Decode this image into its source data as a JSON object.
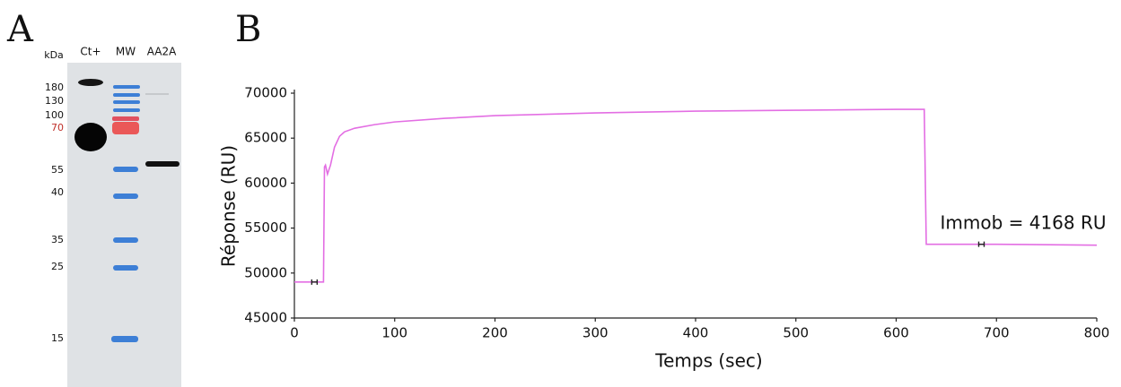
{
  "panel_a": {
    "label": "A",
    "unit": "kDa",
    "lanes": [
      "Ct+",
      "MW",
      "AA2A"
    ],
    "ladder": [
      "180",
      "130",
      "100",
      "70",
      "55",
      "40",
      "35",
      "25",
      "15"
    ]
  },
  "chart_data": {
    "type": "line",
    "panel": "B",
    "x_label": "Temps (sec)",
    "y_label": "Réponse (RU)",
    "annotation": "Immob = 4168 RU",
    "color": "#e36ee3",
    "x": [
      0,
      29,
      30,
      31,
      33,
      36,
      40,
      45,
      50,
      60,
      80,
      100,
      150,
      200,
      300,
      400,
      500,
      600,
      628,
      630,
      700,
      800
    ],
    "values": [
      49000,
      49000,
      61800,
      62000,
      61000,
      62000,
      64000,
      65200,
      65700,
      66100,
      66500,
      66800,
      67200,
      67500,
      67800,
      68000,
      68100,
      68200,
      68200,
      53200,
      53200,
      53100
    ],
    "markers": {
      "x": [
        20,
        685
      ],
      "values": [
        49000,
        53200
      ]
    },
    "xlim": [
      0,
      800
    ],
    "ylim": [
      45000,
      70000
    ],
    "xticks": [
      0,
      100,
      200,
      300,
      400,
      500,
      600,
      700,
      800
    ],
    "yticks": [
      45000,
      50000,
      55000,
      60000,
      65000,
      70000
    ],
    "grid": false
  }
}
